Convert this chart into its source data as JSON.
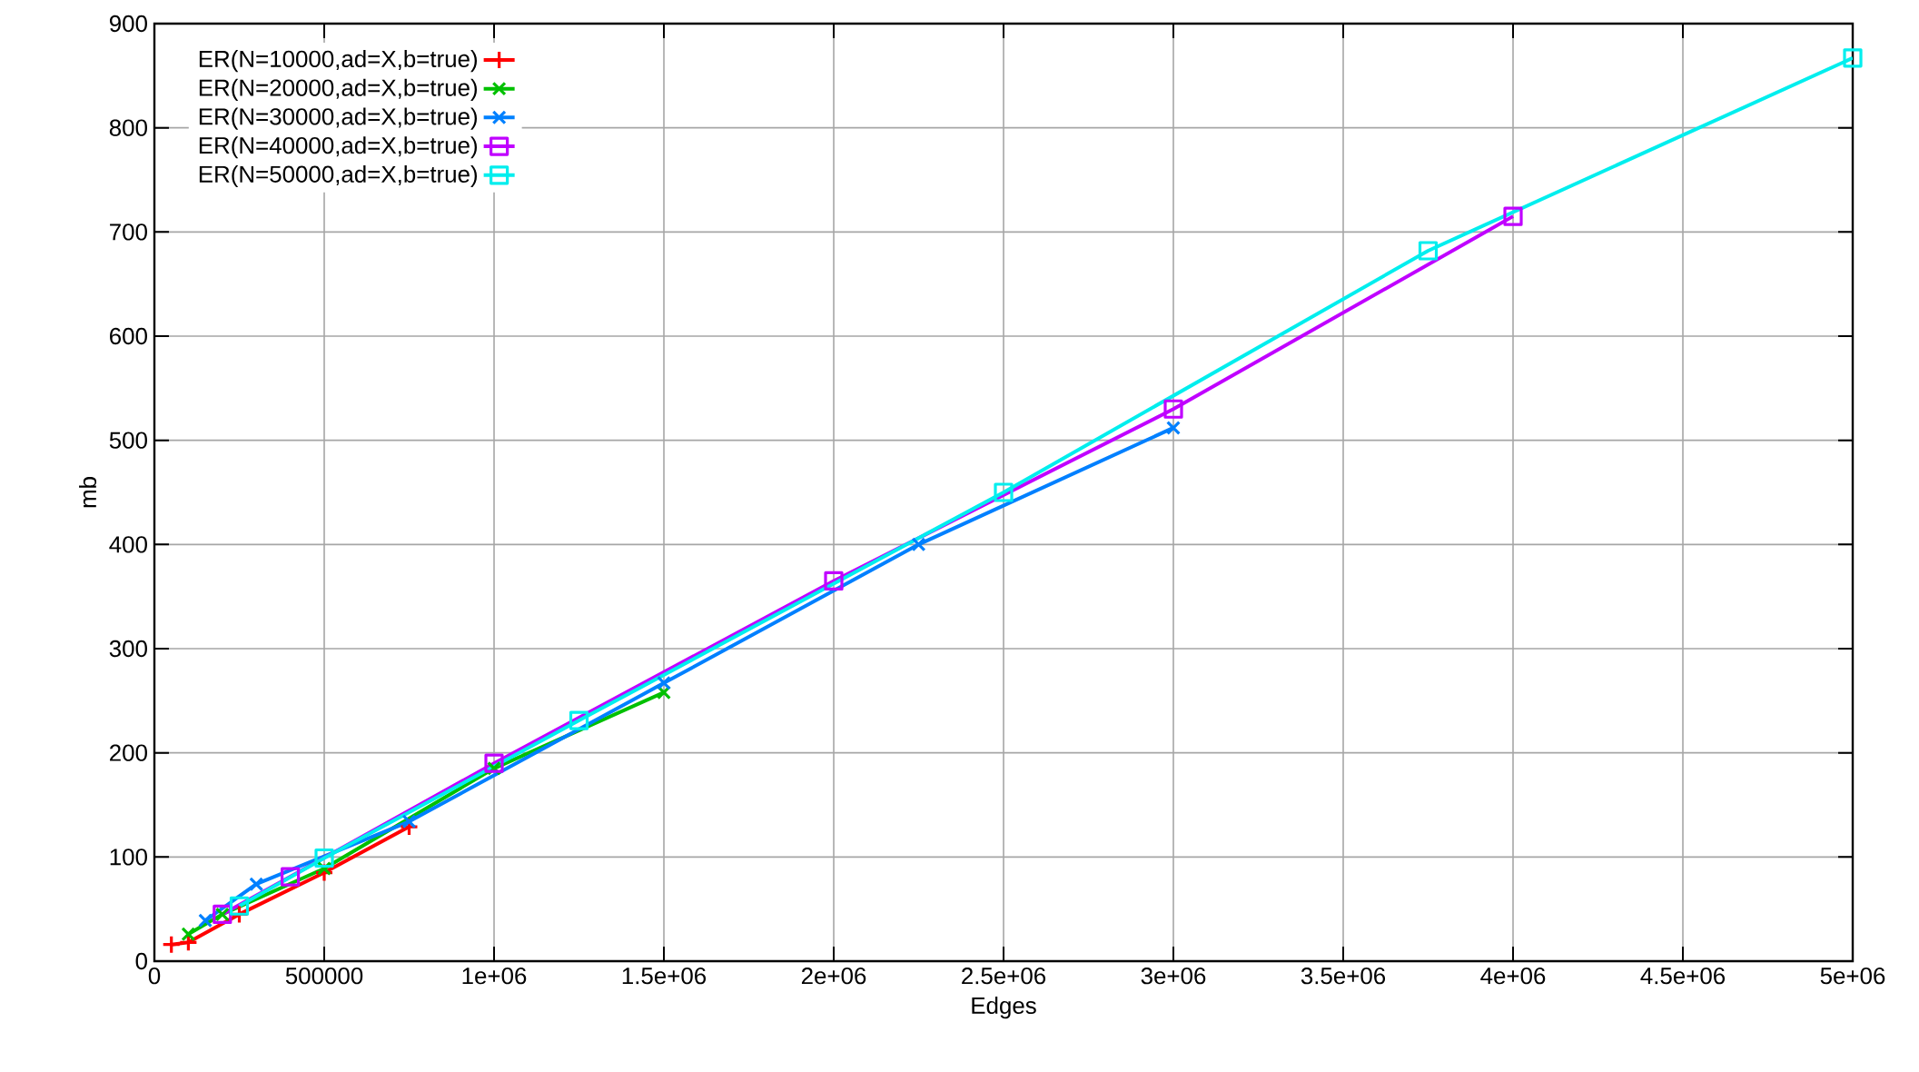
{
  "chart_data": {
    "type": "line",
    "xlabel": "Edges",
    "ylabel": "mb",
    "xlim": [
      0,
      5000000
    ],
    "ylim": [
      0,
      900
    ],
    "xticks": [
      0,
      500000,
      {
        "value": 1000000,
        "label": "1e+06"
      },
      {
        "value": 1500000,
        "label": "1.5e+06"
      },
      {
        "value": 2000000,
        "label": "2e+06"
      },
      {
        "value": 2500000,
        "label": "2.5e+06"
      },
      {
        "value": 3000000,
        "label": "3e+06"
      },
      {
        "value": 3500000,
        "label": "3.5e+06"
      },
      {
        "value": 4000000,
        "label": "4e+06"
      },
      {
        "value": 4500000,
        "label": "4.5e+06"
      },
      {
        "value": 5000000,
        "label": "5e+06"
      }
    ],
    "yticks": [
      0,
      100,
      200,
      300,
      400,
      500,
      600,
      700,
      800,
      900
    ],
    "grid": true,
    "legend": "top left",
    "line_style": "solid",
    "series": [
      {
        "name": "ER(N=10000,ad=X,b=true)",
        "color": "#ff0000",
        "marker": "plus",
        "x": [
          50000,
          100000,
          250000,
          500000,
          750000
        ],
        "values": [
          16,
          18,
          45,
          85,
          129
        ]
      },
      {
        "name": "ER(N=20000,ad=X,b=true)",
        "color": "#00c000",
        "marker": "cross",
        "x": [
          100000,
          200000,
          500000,
          1000000,
          1500000
        ],
        "values": [
          26,
          45,
          89,
          185,
          258
        ]
      },
      {
        "name": "ER(N=30000,ad=X,b=true)",
        "color": "#0080ff",
        "marker": "cross",
        "x": [
          150000,
          300000,
          750000,
          1500000,
          2250000,
          3000000
        ],
        "values": [
          39,
          74,
          134,
          267,
          400,
          512
        ]
      },
      {
        "name": "ER(N=40000,ad=X,b=true)",
        "color": "#c000ff",
        "marker": "square",
        "x": [
          200000,
          400000,
          1000000,
          2000000,
          3000000,
          4000000
        ],
        "values": [
          45,
          81,
          190,
          365,
          530,
          715
        ]
      },
      {
        "name": "ER(N=50000,ad=X,b=true)",
        "color": "#00eeee",
        "marker": "square",
        "x": [
          250000,
          500000,
          1250000,
          2500000,
          3750000,
          5000000
        ],
        "values": [
          53,
          99,
          231,
          450,
          682,
          867
        ]
      }
    ]
  }
}
